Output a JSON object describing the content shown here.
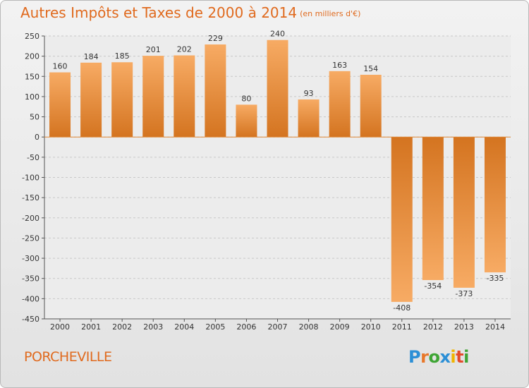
{
  "title": "Autres Impôts et Taxes de 2000 à 2014",
  "unit_note": "(en milliers d'€)",
  "place": "PORCHEVILLE",
  "logo": "Proxiti",
  "colors": {
    "bar_light": "#f7ab64",
    "bar_dark": "#d47420",
    "title": "#e06a1e",
    "grid": "#c8c8c8"
  },
  "chart_data": {
    "type": "bar",
    "title": "Autres Impôts et Taxes de 2000 à 2014",
    "ylabel": "",
    "xlabel": "",
    "categories": [
      "2000",
      "2001",
      "2002",
      "2003",
      "2004",
      "2005",
      "2006",
      "2007",
      "2008",
      "2009",
      "2010",
      "2011",
      "2012",
      "2013",
      "2014"
    ],
    "values": [
      160,
      184,
      185,
      201,
      202,
      229,
      80,
      240,
      93,
      163,
      154,
      -408,
      -354,
      -373,
      -335
    ],
    "ylim": [
      -450,
      250
    ],
    "yticks": [
      250,
      200,
      150,
      100,
      50,
      0,
      -50,
      -100,
      -150,
      -200,
      -250,
      -300,
      -350,
      -400,
      -450
    ],
    "grid": "horizontal dashed"
  }
}
